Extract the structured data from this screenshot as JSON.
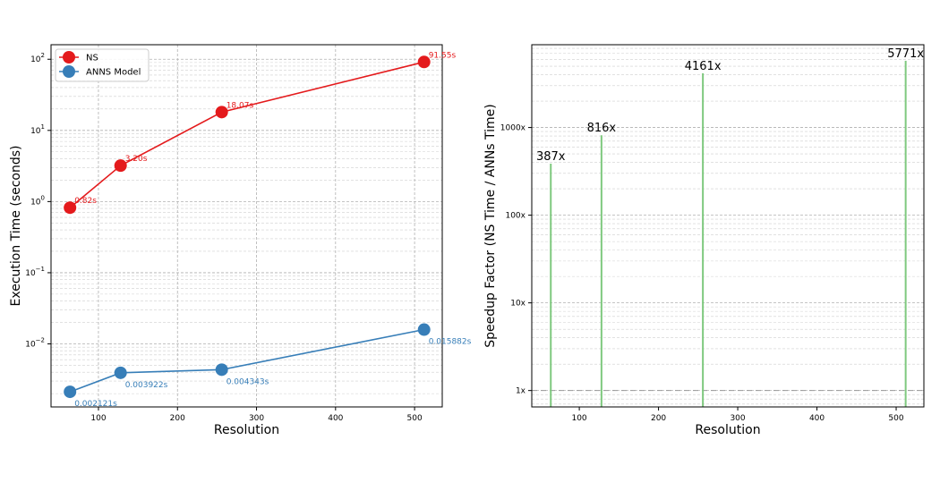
{
  "chart_data": [
    {
      "type": "line",
      "title": "",
      "xlabel": "Resolution",
      "ylabel": "Execution Time (seconds)",
      "yscale": "log",
      "x": [
        64,
        128,
        256,
        512
      ],
      "xlim": [
        40,
        535
      ],
      "ylim": [
        0.0013,
        160
      ],
      "x_ticks": [
        100,
        200,
        300,
        400,
        500
      ],
      "y_ticks": [
        {
          "value": 0.01,
          "base": "10",
          "exp": "−2"
        },
        {
          "value": 0.1,
          "base": "10",
          "exp": "−1"
        },
        {
          "value": 1,
          "base": "10",
          "exp": "0"
        },
        {
          "value": 10,
          "base": "10",
          "exp": "1"
        },
        {
          "value": 100,
          "base": "10",
          "exp": "2"
        }
      ],
      "grid": true,
      "legend_position": "top-left",
      "series": [
        {
          "name": "NS",
          "color": "#e41a1c",
          "values": [
            0.82,
            3.2,
            18.07,
            91.55
          ],
          "labels": [
            "0.82s",
            "3.20s",
            "18.07s",
            "91.55s"
          ]
        },
        {
          "name": "ANNS Model",
          "color": "#377eb8",
          "values": [
            0.002121,
            0.003922,
            0.004343,
            0.015882
          ],
          "labels": [
            "0.002121s",
            "0.003922s",
            "0.004343s",
            "0.015882s"
          ]
        }
      ]
    },
    {
      "type": "bar",
      "title": "",
      "xlabel": "Resolution",
      "ylabel": "Speedup Factor (NS Time / ANNs Time)",
      "yscale": "log",
      "x": [
        64,
        128,
        256,
        512
      ],
      "values": [
        387,
        816,
        4161,
        5771
      ],
      "labels": [
        "387x",
        "816x",
        "4161x",
        "5771x"
      ],
      "bar_color": "#7fc97f",
      "xlim": [
        40,
        535
      ],
      "ylim": [
        0.65,
        8800
      ],
      "x_ticks": [
        100,
        200,
        300,
        400,
        500
      ],
      "y_ticks": [
        {
          "value": 1,
          "label": "1x"
        },
        {
          "value": 10,
          "label": "10x"
        },
        {
          "value": 100,
          "label": "100x"
        },
        {
          "value": 1000,
          "label": "1000x"
        }
      ],
      "reference_line": 1,
      "grid": true
    }
  ]
}
